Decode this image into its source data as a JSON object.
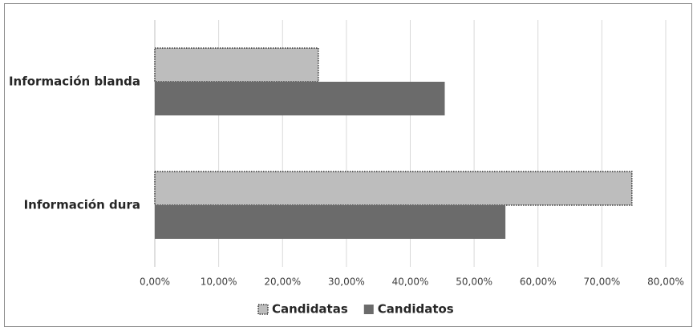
{
  "chart_data": {
    "type": "bar",
    "orientation": "horizontal",
    "categories": [
      "Información blanda",
      "Información dura"
    ],
    "series": [
      {
        "name": "Candidatas",
        "color": "#bdbdbd",
        "values": [
          25.6,
          74.7
        ]
      },
      {
        "name": "Candidatos",
        "color": "#6b6b6b",
        "values": [
          45.4,
          54.9
        ]
      }
    ],
    "xlim": [
      0,
      80
    ],
    "xticks": [
      {
        "value": 0,
        "label": "0,00%"
      },
      {
        "value": 10,
        "label": "10,00%"
      },
      {
        "value": 20,
        "label": "20,00%"
      },
      {
        "value": 30,
        "label": "30,00%"
      },
      {
        "value": 40,
        "label": "40,00%"
      },
      {
        "value": 50,
        "label": "50,00%"
      },
      {
        "value": 60,
        "label": "60,00%"
      },
      {
        "value": 70,
        "label": "70,00%"
      },
      {
        "value": 80,
        "label": "80,00%"
      }
    ],
    "grid": true,
    "legend": "bottom"
  }
}
